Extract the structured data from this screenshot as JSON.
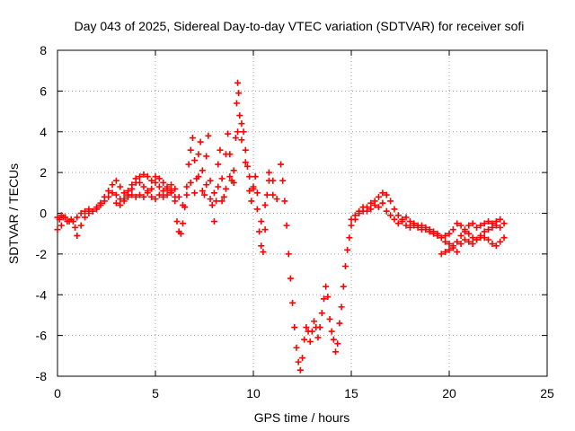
{
  "chart_data": {
    "type": "scatter",
    "title": "Day 043 of 2025, Sidereal Day-to-day VTEC variation (SDTVAR) for receiver sofi",
    "xlabel": "GPS time / hours",
    "ylabel": "SDTVAR / TECUs",
    "xlim": [
      0,
      25
    ],
    "ylim": [
      -8,
      8
    ],
    "xticks": [
      "0",
      "5",
      "10",
      "15",
      "20",
      "25"
    ],
    "yticks": [
      "-8",
      "-6",
      "-4",
      "-2",
      "0",
      "2",
      "4",
      "6",
      "8"
    ],
    "grid": true,
    "marker": "+",
    "color": "#ff0000",
    "series": [
      {
        "name": "SDTVAR",
        "points": [
          [
            0.0,
            -0.8
          ],
          [
            0.1,
            -0.3
          ],
          [
            0.2,
            -0.6
          ],
          [
            0.3,
            -0.2
          ],
          [
            0.5,
            -0.4
          ],
          [
            0.7,
            -0.3
          ],
          [
            0.9,
            -0.7
          ],
          [
            1.0,
            -1.1
          ],
          [
            1.2,
            -0.6
          ],
          [
            1.4,
            -0.2
          ],
          [
            1.6,
            0.0
          ],
          [
            1.8,
            0.1
          ],
          [
            2.0,
            0.3
          ],
          [
            2.2,
            0.5
          ],
          [
            2.4,
            0.8
          ],
          [
            2.6,
            1.1
          ],
          [
            2.8,
            1.4
          ],
          [
            3.0,
            1.6
          ],
          [
            3.2,
            1.3
          ],
          [
            3.4,
            1.0
          ],
          [
            3.6,
            1.1
          ],
          [
            3.8,
            1.4
          ],
          [
            4.0,
            1.7
          ],
          [
            4.2,
            1.8
          ],
          [
            4.4,
            1.9
          ],
          [
            4.6,
            1.8
          ],
          [
            4.8,
            1.6
          ],
          [
            5.0,
            1.8
          ],
          [
            5.2,
            1.7
          ],
          [
            5.4,
            1.5
          ],
          [
            5.6,
            1.3
          ],
          [
            5.8,
            1.1
          ],
          [
            6.0,
            0.6
          ],
          [
            6.1,
            -0.4
          ],
          [
            6.2,
            -0.9
          ],
          [
            6.3,
            -1.0
          ],
          [
            6.4,
            -0.5
          ],
          [
            6.5,
            0.3
          ],
          [
            6.6,
            1.3
          ],
          [
            6.7,
            2.4
          ],
          [
            6.8,
            3.1
          ],
          [
            6.9,
            3.7
          ],
          [
            7.0,
            2.6
          ],
          [
            7.1,
            1.7
          ],
          [
            7.2,
            2.9
          ],
          [
            7.3,
            3.5
          ],
          [
            7.4,
            2.1
          ],
          [
            7.5,
            0.9
          ],
          [
            7.6,
            2.8
          ],
          [
            7.7,
            3.8
          ],
          [
            7.8,
            1.6
          ],
          [
            7.9,
            0.4
          ],
          [
            8.0,
            -0.4
          ],
          [
            8.1,
            0.6
          ],
          [
            8.2,
            2.4
          ],
          [
            8.3,
            3.1
          ],
          [
            8.4,
            1.7
          ],
          [
            8.5,
            0.8
          ],
          [
            8.6,
            2.9
          ],
          [
            8.7,
            3.9
          ],
          [
            8.8,
            2.9
          ],
          [
            8.9,
            1.6
          ],
          [
            9.0,
            2.1
          ],
          [
            9.1,
            3.7
          ],
          [
            9.15,
            5.4
          ],
          [
            9.2,
            6.4
          ],
          [
            9.25,
            5.9
          ],
          [
            9.3,
            4.8
          ],
          [
            9.4,
            4.4
          ],
          [
            9.5,
            4.0
          ],
          [
            9.6,
            3.1
          ],
          [
            9.7,
            2.3
          ],
          [
            9.8,
            1.1
          ],
          [
            9.9,
            0.6
          ],
          [
            10.0,
            1.2
          ],
          [
            10.1,
            1.8
          ],
          [
            10.2,
            0.2
          ],
          [
            10.3,
            -0.9
          ],
          [
            10.4,
            -1.6
          ],
          [
            10.5,
            -1.9
          ],
          [
            10.6,
            -0.8
          ],
          [
            10.7,
            0.9
          ],
          [
            10.8,
            1.6
          ],
          [
            11.0,
            1.6
          ],
          [
            11.2,
            0.7
          ],
          [
            11.4,
            2.4
          ],
          [
            11.5,
            1.6
          ],
          [
            11.6,
            0.6
          ],
          [
            11.7,
            -0.6
          ],
          [
            11.8,
            -2.0
          ],
          [
            11.9,
            -3.2
          ],
          [
            12.0,
            -4.4
          ],
          [
            12.1,
            -5.6
          ],
          [
            12.2,
            -6.6
          ],
          [
            12.3,
            -7.3
          ],
          [
            12.4,
            -7.7
          ],
          [
            12.5,
            -7.1
          ],
          [
            12.6,
            -6.2
          ],
          [
            12.7,
            -5.6
          ],
          [
            12.8,
            -5.8
          ],
          [
            12.9,
            -6.3
          ],
          [
            13.0,
            -5.8
          ],
          [
            13.1,
            -5.3
          ],
          [
            13.2,
            -5.6
          ],
          [
            13.3,
            -6.1
          ],
          [
            13.4,
            -5.6
          ],
          [
            13.5,
            -4.9
          ],
          [
            13.6,
            -4.2
          ],
          [
            13.7,
            -3.6
          ],
          [
            13.8,
            -4.1
          ],
          [
            13.9,
            -5.2
          ],
          [
            14.0,
            -5.8
          ],
          [
            14.1,
            -6.2
          ],
          [
            14.2,
            -6.8
          ],
          [
            14.3,
            -6.4
          ],
          [
            14.4,
            -5.4
          ],
          [
            14.5,
            -4.6
          ],
          [
            14.6,
            -3.6
          ],
          [
            14.7,
            -2.6
          ],
          [
            14.8,
            -1.8
          ],
          [
            14.9,
            -1.2
          ],
          [
            15.0,
            -0.6
          ],
          [
            15.2,
            -0.3
          ],
          [
            15.4,
            0.0
          ],
          [
            15.6,
            0.1
          ],
          [
            15.8,
            0.3
          ],
          [
            16.0,
            0.5
          ],
          [
            16.2,
            0.6
          ],
          [
            16.4,
            0.8
          ],
          [
            16.6,
            1.0
          ],
          [
            16.8,
            0.9
          ],
          [
            17.0,
            0.6
          ],
          [
            17.2,
            0.2
          ],
          [
            17.4,
            -0.1
          ],
          [
            17.6,
            -0.4
          ],
          [
            17.8,
            -0.6
          ],
          [
            18.0,
            -0.7
          ],
          [
            18.2,
            -0.6
          ],
          [
            18.4,
            -0.7
          ],
          [
            18.6,
            -0.8
          ],
          [
            18.8,
            -0.8
          ],
          [
            19.0,
            -0.9
          ],
          [
            19.2,
            -1.0
          ],
          [
            19.4,
            -1.1
          ],
          [
            19.6,
            -1.2
          ],
          [
            19.8,
            -1.1
          ],
          [
            20.0,
            -1.0
          ],
          [
            20.2,
            -0.8
          ],
          [
            20.4,
            -0.5
          ],
          [
            20.6,
            -0.6
          ],
          [
            20.8,
            -0.9
          ],
          [
            21.0,
            -1.0
          ],
          [
            21.2,
            -1.2
          ],
          [
            21.4,
            -1.3
          ],
          [
            21.6,
            -1.1
          ],
          [
            21.8,
            -0.9
          ],
          [
            22.0,
            -0.8
          ],
          [
            22.2,
            -0.7
          ],
          [
            22.4,
            -0.6
          ],
          [
            22.6,
            -0.7
          ],
          [
            22.8,
            -0.5
          ],
          [
            0.0,
            -0.2
          ],
          [
            0.2,
            -0.1
          ],
          [
            0.4,
            -0.2
          ],
          [
            0.6,
            -0.4
          ],
          [
            0.8,
            -0.4
          ],
          [
            1.0,
            -0.2
          ],
          [
            1.2,
            0.0
          ],
          [
            1.4,
            0.1
          ],
          [
            1.6,
            0.2
          ],
          [
            1.8,
            0.1
          ],
          [
            2.0,
            0.2
          ],
          [
            2.2,
            0.4
          ],
          [
            2.4,
            0.6
          ],
          [
            2.6,
            0.8
          ],
          [
            2.8,
            1.0
          ],
          [
            3.0,
            0.9
          ],
          [
            3.2,
            0.7
          ],
          [
            3.4,
            0.7
          ],
          [
            3.6,
            0.9
          ],
          [
            3.8,
            1.2
          ],
          [
            4.0,
            1.5
          ],
          [
            4.2,
            1.5
          ],
          [
            4.4,
            1.3
          ],
          [
            4.6,
            1.1
          ],
          [
            4.8,
            1.2
          ],
          [
            5.0,
            1.5
          ],
          [
            5.2,
            1.3
          ],
          [
            5.4,
            1.1
          ],
          [
            5.6,
            1.2
          ],
          [
            5.8,
            1.4
          ],
          [
            6.0,
            1.2
          ],
          [
            6.2,
            0.8
          ],
          [
            6.4,
            0.4
          ],
          [
            6.6,
            0.9
          ],
          [
            6.8,
            1.5
          ],
          [
            7.0,
            1.0
          ],
          [
            7.2,
            1.8
          ],
          [
            7.4,
            1.1
          ],
          [
            7.6,
            1.4
          ],
          [
            7.8,
            0.7
          ],
          [
            8.0,
            1.0
          ],
          [
            8.2,
            1.3
          ],
          [
            8.4,
            0.6
          ],
          [
            8.6,
            1.2
          ],
          [
            8.8,
            1.8
          ],
          [
            9.0,
            1.5
          ],
          [
            9.2,
            4.0
          ],
          [
            9.4,
            3.6
          ],
          [
            9.6,
            2.5
          ],
          [
            9.8,
            1.8
          ],
          [
            10.0,
            1.3
          ],
          [
            10.2,
            1.0
          ],
          [
            10.4,
            -0.4
          ],
          [
            10.6,
            0.4
          ],
          [
            10.8,
            2.0
          ],
          [
            11.0,
            0.9
          ],
          [
            3.0,
            0.5
          ],
          [
            3.2,
            0.4
          ],
          [
            3.4,
            0.6
          ],
          [
            3.6,
            0.8
          ],
          [
            3.8,
            0.9
          ],
          [
            4.0,
            0.8
          ],
          [
            4.2,
            0.9
          ],
          [
            4.4,
            0.8
          ],
          [
            4.6,
            1.0
          ],
          [
            4.8,
            0.8
          ],
          [
            5.0,
            0.7
          ],
          [
            5.2,
            0.9
          ],
          [
            5.4,
            0.8
          ],
          [
            5.6,
            0.9
          ],
          [
            5.8,
            1.0
          ],
          [
            6.0,
            0.8
          ],
          [
            15.0,
            -0.3
          ],
          [
            15.2,
            -0.1
          ],
          [
            15.4,
            0.1
          ],
          [
            15.6,
            0.3
          ],
          [
            15.8,
            0.1
          ],
          [
            16.0,
            0.2
          ],
          [
            16.2,
            0.4
          ],
          [
            16.4,
            0.3
          ],
          [
            16.6,
            0.5
          ],
          [
            16.8,
            0.1
          ],
          [
            17.0,
            -0.1
          ],
          [
            17.2,
            -0.3
          ],
          [
            17.4,
            -0.5
          ],
          [
            17.6,
            -0.3
          ],
          [
            17.8,
            -0.2
          ],
          [
            18.0,
            -0.4
          ],
          [
            18.2,
            -0.5
          ],
          [
            18.4,
            -0.6
          ],
          [
            18.6,
            -0.6
          ],
          [
            18.8,
            -0.7
          ],
          [
            19.0,
            -0.8
          ],
          [
            19.2,
            -0.9
          ],
          [
            19.4,
            -1.0
          ],
          [
            19.6,
            -1.2
          ],
          [
            19.8,
            -1.4
          ],
          [
            20.0,
            -1.5
          ],
          [
            20.2,
            -1.7
          ],
          [
            20.4,
            -1.9
          ],
          [
            20.6,
            -1.5
          ],
          [
            20.8,
            -1.3
          ],
          [
            21.0,
            -1.4
          ],
          [
            21.2,
            -1.5
          ],
          [
            21.4,
            -1.3
          ],
          [
            21.6,
            -1.2
          ],
          [
            21.8,
            -1.2
          ],
          [
            22.0,
            -1.3
          ],
          [
            22.2,
            -1.5
          ],
          [
            22.4,
            -1.6
          ],
          [
            22.6,
            -1.4
          ],
          [
            22.8,
            -1.2
          ],
          [
            19.6,
            -2.0
          ],
          [
            19.8,
            -1.9
          ],
          [
            20.0,
            -1.8
          ],
          [
            20.2,
            -1.6
          ],
          [
            20.4,
            -1.4
          ],
          [
            20.6,
            -1.1
          ],
          [
            20.8,
            -0.8
          ],
          [
            21.0,
            -0.6
          ],
          [
            21.2,
            -0.5
          ],
          [
            21.4,
            -0.7
          ],
          [
            21.6,
            -0.6
          ],
          [
            21.8,
            -0.5
          ],
          [
            22.0,
            -0.4
          ],
          [
            22.2,
            -0.5
          ],
          [
            22.4,
            -0.4
          ],
          [
            22.6,
            -0.3
          ]
        ]
      }
    ]
  }
}
